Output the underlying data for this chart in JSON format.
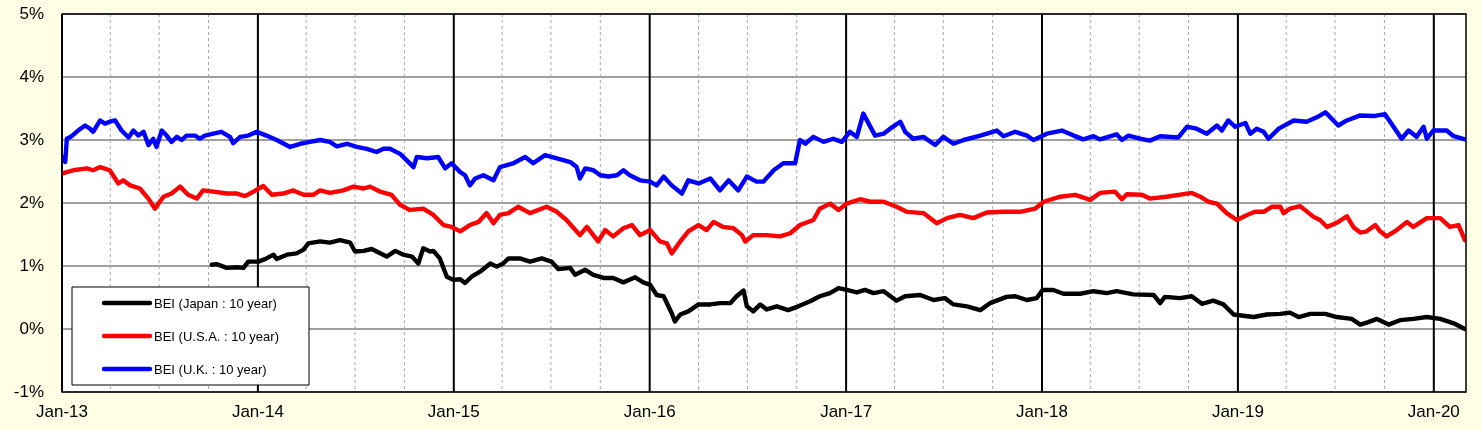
{
  "chart_data": {
    "type": "line",
    "xlim": [
      "2013-01-01",
      "2020-03-01"
    ],
    "xticks": [
      {
        "value": "2013-01-01",
        "label": "Jan-13"
      },
      {
        "value": "2013-04-01",
        "label": null
      },
      {
        "value": "2013-07-01",
        "label": null
      },
      {
        "value": "2013-10-01",
        "label": null
      },
      {
        "value": "2014-01-01",
        "label": "Jan-14"
      },
      {
        "value": "2014-04-01",
        "label": null
      },
      {
        "value": "2014-07-01",
        "label": null
      },
      {
        "value": "2014-10-01",
        "label": null
      },
      {
        "value": "2015-01-01",
        "label": "Jan-15"
      },
      {
        "value": "2015-04-01",
        "label": null
      },
      {
        "value": "2015-07-01",
        "label": null
      },
      {
        "value": "2015-10-01",
        "label": null
      },
      {
        "value": "2016-01-01",
        "label": "Jan-16"
      },
      {
        "value": "2016-04-01",
        "label": null
      },
      {
        "value": "2016-07-01",
        "label": null
      },
      {
        "value": "2016-10-01",
        "label": null
      },
      {
        "value": "2017-01-01",
        "label": "Jan-17"
      },
      {
        "value": "2017-04-01",
        "label": null
      },
      {
        "value": "2017-07-01",
        "label": null
      },
      {
        "value": "2017-10-01",
        "label": null
      },
      {
        "value": "2018-01-01",
        "label": "Jan-18"
      },
      {
        "value": "2018-04-01",
        "label": null
      },
      {
        "value": "2018-07-01",
        "label": null
      },
      {
        "value": "2018-10-01",
        "label": null
      },
      {
        "value": "2019-01-01",
        "label": "Jan-19"
      },
      {
        "value": "2019-04-01",
        "label": null
      },
      {
        "value": "2019-07-01",
        "label": null
      },
      {
        "value": "2019-10-01",
        "label": null
      },
      {
        "value": "2020-01-01",
        "label": "Jan-20"
      }
    ],
    "ylim": [
      -1,
      5
    ],
    "yticks": [
      {
        "value": -1,
        "label": "-1%"
      },
      {
        "value": 0,
        "label": "0%"
      },
      {
        "value": 1,
        "label": "1%"
      },
      {
        "value": 2,
        "label": "2%"
      },
      {
        "value": 3,
        "label": "3%"
      },
      {
        "value": 4,
        "label": "4%"
      },
      {
        "value": 5,
        "label": "5%"
      }
    ],
    "grid": true,
    "legend": "bottom left",
    "series": [
      {
        "name": "BEI (Japan : 10 year)",
        "color": "#000000",
        "x": [
          "2013-10-07",
          "2013-10-16",
          "2013-11-04",
          "2013-11-23",
          "2013-12-05",
          "2013-12-14",
          "2014-01-02",
          "2014-01-17",
          "2014-01-30",
          "2014-02-05",
          "2014-02-24",
          "2014-03-14",
          "2014-03-27",
          "2014-04-05",
          "2014-04-27",
          "2014-05-15",
          "2014-06-03",
          "2014-06-22",
          "2014-07-01",
          "2014-07-17",
          "2014-08-01",
          "2014-08-29",
          "2014-09-14",
          "2014-09-29",
          "2014-10-15",
          "2014-10-27",
          "2014-11-05",
          "2014-11-18",
          "2014-11-24",
          "2014-12-06",
          "2014-12-19",
          "2014-12-31",
          "2015-01-13",
          "2015-01-22",
          "2015-02-03",
          "2015-02-19",
          "2015-03-10",
          "2015-03-22",
          "2015-04-03",
          "2015-04-13",
          "2015-05-04",
          "2015-05-23",
          "2015-06-14",
          "2015-07-02",
          "2015-07-15",
          "2015-08-06",
          "2015-08-15",
          "2015-09-03",
          "2015-09-18",
          "2015-10-07",
          "2015-10-25",
          "2015-11-13",
          "2015-12-05",
          "2015-12-20",
          "2016-01-02",
          "2016-01-14",
          "2016-01-27",
          "2016-02-11",
          "2016-02-17",
          "2016-02-27",
          "2016-03-13",
          "2016-04-01",
          "2016-04-23",
          "2016-05-11",
          "2016-05-30",
          "2016-06-11",
          "2016-06-24",
          "2016-06-30",
          "2016-07-12",
          "2016-07-25",
          "2016-08-06",
          "2016-08-25",
          "2016-09-15",
          "2016-10-04",
          "2016-10-26",
          "2016-11-13",
          "2016-12-02",
          "2016-12-18",
          "2017-01-02",
          "2017-01-21",
          "2017-02-05",
          "2017-02-21",
          "2017-03-12",
          "2017-04-05",
          "2017-04-21",
          "2017-05-19",
          "2017-06-13",
          "2017-07-04",
          "2017-07-20",
          "2017-08-14",
          "2017-09-08",
          "2017-09-26",
          "2017-10-27",
          "2017-11-12",
          "2017-12-04",
          "2017-12-22",
          "2018-01-02",
          "2018-01-22",
          "2018-02-10",
          "2018-03-13",
          "2018-04-07",
          "2018-05-02",
          "2018-05-20",
          "2018-06-20",
          "2018-07-28",
          "2018-08-09",
          "2018-08-18",
          "2018-09-15",
          "2018-10-07",
          "2018-10-26",
          "2018-11-16",
          "2018-12-05",
          "2018-12-24",
          "2019-01-11",
          "2019-01-30",
          "2019-02-24",
          "2019-03-21",
          "2019-04-08",
          "2019-04-24",
          "2019-05-16",
          "2019-06-13",
          "2019-07-04",
          "2019-08-01",
          "2019-08-17",
          "2019-09-01",
          "2019-09-17",
          "2019-10-09",
          "2019-10-30",
          "2019-11-24",
          "2019-12-19",
          "2020-01-13",
          "2020-02-07",
          "2020-02-28"
        ],
        "values": [
          1.02,
          1.03,
          0.97,
          0.98,
          0.97,
          1.07,
          1.07,
          1.12,
          1.18,
          1.11,
          1.18,
          1.2,
          1.26,
          1.36,
          1.39,
          1.37,
          1.41,
          1.37,
          1.23,
          1.24,
          1.27,
          1.15,
          1.24,
          1.18,
          1.15,
          1.04,
          1.28,
          1.23,
          1.24,
          1.12,
          0.83,
          0.78,
          0.79,
          0.73,
          0.83,
          0.91,
          1.04,
          0.99,
          1.04,
          1.12,
          1.12,
          1.07,
          1.12,
          1.07,
          0.95,
          0.97,
          0.86,
          0.94,
          0.86,
          0.81,
          0.81,
          0.74,
          0.82,
          0.74,
          0.7,
          0.54,
          0.52,
          0.25,
          0.12,
          0.23,
          0.28,
          0.39,
          0.39,
          0.41,
          0.41,
          0.52,
          0.61,
          0.36,
          0.28,
          0.39,
          0.31,
          0.36,
          0.3,
          0.36,
          0.44,
          0.52,
          0.57,
          0.65,
          0.62,
          0.58,
          0.62,
          0.57,
          0.6,
          0.45,
          0.52,
          0.54,
          0.46,
          0.49,
          0.39,
          0.36,
          0.3,
          0.41,
          0.51,
          0.52,
          0.46,
          0.49,
          0.62,
          0.62,
          0.56,
          0.56,
          0.6,
          0.57,
          0.6,
          0.55,
          0.54,
          0.41,
          0.51,
          0.49,
          0.52,
          0.4,
          0.45,
          0.39,
          0.23,
          0.21,
          0.19,
          0.23,
          0.24,
          0.26,
          0.19,
          0.24,
          0.24,
          0.19,
          0.16,
          0.07,
          0.11,
          0.16,
          0.07,
          0.14,
          0.16,
          0.19,
          0.16,
          0.09,
          0.0
        ]
      },
      {
        "name": "BEI (U.S.A. : 10 year)",
        "color": "#ff0000",
        "x": [
          "2013-01-02",
          "2013-01-22",
          "2013-02-16",
          "2013-02-28",
          "2013-03-13",
          "2013-03-31",
          "2013-04-16",
          "2013-04-25",
          "2013-05-08",
          "2013-05-26",
          "2013-06-11",
          "2013-06-23",
          "2013-07-09",
          "2013-07-24",
          "2013-08-09",
          "2013-08-24",
          "2013-09-09",
          "2013-09-21",
          "2013-10-10",
          "2013-11-04",
          "2013-11-23",
          "2013-12-08",
          "2013-12-24",
          "2014-01-11",
          "2014-01-27",
          "2014-02-17",
          "2014-03-08",
          "2014-03-27",
          "2014-04-14",
          "2014-04-27",
          "2014-05-15",
          "2014-06-09",
          "2014-06-28",
          "2014-07-17",
          "2014-07-29",
          "2014-08-17",
          "2014-09-07",
          "2014-09-23",
          "2014-10-11",
          "2014-11-05",
          "2014-11-24",
          "2014-12-13",
          "2014-12-28",
          "2015-01-13",
          "2015-01-31",
          "2015-02-16",
          "2015-03-03",
          "2015-03-16",
          "2015-03-28",
          "2015-04-13",
          "2015-05-01",
          "2015-05-23",
          "2015-06-23",
          "2015-07-12",
          "2015-07-30",
          "2015-08-24",
          "2015-09-06",
          "2015-09-27",
          "2015-10-10",
          "2015-10-25",
          "2015-11-13",
          "2015-11-29",
          "2015-12-14",
          "2016-01-02",
          "2016-01-20",
          "2016-02-02",
          "2016-02-11",
          "2016-02-27",
          "2016-03-13",
          "2016-04-01",
          "2016-04-16",
          "2016-04-29",
          "2016-05-17",
          "2016-06-05",
          "2016-06-21",
          "2016-06-27",
          "2016-07-12",
          "2016-08-06",
          "2016-08-31",
          "2016-09-19",
          "2016-10-07",
          "2016-11-01",
          "2016-11-13",
          "2016-12-02",
          "2016-12-18",
          "2017-01-02",
          "2017-01-27",
          "2017-02-15",
          "2017-03-12",
          "2017-04-05",
          "2017-04-24",
          "2017-05-25",
          "2017-06-19",
          "2017-07-08",
          "2017-08-01",
          "2017-08-26",
          "2017-09-20",
          "2017-10-21",
          "2017-11-21",
          "2017-12-19",
          "2018-01-04",
          "2018-02-04",
          "2018-03-04",
          "2018-04-01",
          "2018-04-19",
          "2018-05-17",
          "2018-05-30",
          "2018-06-08",
          "2018-07-06",
          "2018-07-21",
          "2018-08-21",
          "2018-09-22",
          "2018-10-07",
          "2018-10-23",
          "2018-11-07",
          "2018-11-23",
          "2018-12-11",
          "2018-12-30",
          "2019-01-18",
          "2019-02-02",
          "2019-02-18",
          "2019-03-05",
          "2019-03-21",
          "2019-03-27",
          "2019-04-08",
          "2019-04-27",
          "2019-05-22",
          "2019-06-03",
          "2019-06-16",
          "2019-07-07",
          "2019-07-23",
          "2019-08-04",
          "2019-08-17",
          "2019-08-29",
          "2019-09-14",
          "2019-09-23",
          "2019-10-05",
          "2019-10-24",
          "2019-11-12",
          "2019-11-24",
          "2019-12-19",
          "2020-01-13",
          "2020-01-31",
          "2020-02-16",
          "2020-02-28"
        ],
        "values": [
          2.47,
          2.52,
          2.55,
          2.52,
          2.57,
          2.52,
          2.31,
          2.36,
          2.28,
          2.23,
          2.07,
          1.91,
          2.1,
          2.15,
          2.26,
          2.13,
          2.07,
          2.2,
          2.18,
          2.15,
          2.15,
          2.11,
          2.18,
          2.27,
          2.13,
          2.15,
          2.2,
          2.13,
          2.13,
          2.2,
          2.16,
          2.2,
          2.26,
          2.23,
          2.26,
          2.18,
          2.13,
          1.97,
          1.89,
          1.91,
          1.81,
          1.65,
          1.62,
          1.55,
          1.65,
          1.7,
          1.84,
          1.68,
          1.81,
          1.84,
          1.94,
          1.84,
          1.94,
          1.86,
          1.73,
          1.49,
          1.62,
          1.39,
          1.57,
          1.47,
          1.6,
          1.65,
          1.49,
          1.57,
          1.39,
          1.36,
          1.2,
          1.39,
          1.55,
          1.65,
          1.57,
          1.7,
          1.62,
          1.6,
          1.49,
          1.39,
          1.49,
          1.49,
          1.47,
          1.52,
          1.65,
          1.73,
          1.91,
          1.99,
          1.89,
          1.99,
          2.06,
          2.02,
          2.02,
          1.94,
          1.86,
          1.84,
          1.68,
          1.76,
          1.81,
          1.76,
          1.85,
          1.86,
          1.86,
          1.91,
          2.02,
          2.1,
          2.13,
          2.05,
          2.16,
          2.18,
          2.06,
          2.14,
          2.13,
          2.07,
          2.1,
          2.14,
          2.16,
          2.1,
          2.02,
          1.99,
          1.84,
          1.73,
          1.81,
          1.86,
          1.86,
          1.94,
          1.94,
          1.84,
          1.91,
          1.95,
          1.78,
          1.73,
          1.62,
          1.7,
          1.79,
          1.62,
          1.53,
          1.55,
          1.65,
          1.55,
          1.47,
          1.57,
          1.7,
          1.62,
          1.76,
          1.76,
          1.62,
          1.65,
          1.41
        ]
      },
      {
        "name": "BEI (U.K. : 10 year)",
        "color": "#0000ff",
        "x": [
          "2013-01-02",
          "2013-01-07",
          "2013-01-10",
          "2013-01-19",
          "2013-01-31",
          "2013-02-13",
          "2013-02-22",
          "2013-02-28",
          "2013-03-13",
          "2013-03-22",
          "2013-03-31",
          "2013-04-10",
          "2013-04-16",
          "2013-04-22",
          "2013-05-05",
          "2013-05-14",
          "2013-05-23",
          "2013-06-02",
          "2013-06-11",
          "2013-06-20",
          "2013-06-26",
          "2013-07-06",
          "2013-07-15",
          "2013-07-24",
          "2013-08-03",
          "2013-08-12",
          "2013-08-21",
          "2013-09-06",
          "2013-09-15",
          "2013-09-24",
          "2013-10-10",
          "2013-10-25",
          "2013-11-10",
          "2013-11-16",
          "2013-11-29",
          "2013-12-14",
          "2013-12-30",
          "2014-01-17",
          "2014-02-05",
          "2014-03-02",
          "2014-03-21",
          "2014-04-08",
          "2014-04-27",
          "2014-05-15",
          "2014-05-28",
          "2014-06-16",
          "2014-07-04",
          "2014-07-23",
          "2014-08-10",
          "2014-08-23",
          "2014-09-04",
          "2014-09-23",
          "2014-10-05",
          "2014-10-18",
          "2014-10-24",
          "2014-11-12",
          "2014-12-03",
          "2014-12-16",
          "2014-12-28",
          "2015-01-13",
          "2015-01-22",
          "2015-01-31",
          "2015-02-10",
          "2015-02-25",
          "2015-03-16",
          "2015-03-28",
          "2015-04-22",
          "2015-05-14",
          "2015-05-29",
          "2015-06-20",
          "2015-07-12",
          "2015-08-06",
          "2015-08-18",
          "2015-08-24",
          "2015-09-03",
          "2015-09-18",
          "2015-10-01",
          "2015-10-16",
          "2015-11-01",
          "2015-11-13",
          "2015-11-25",
          "2015-12-14",
          "2016-01-02",
          "2016-01-14",
          "2016-01-27",
          "2016-02-11",
          "2016-03-01",
          "2016-03-13",
          "2016-04-01",
          "2016-04-23",
          "2016-05-11",
          "2016-05-27",
          "2016-06-14",
          "2016-06-30",
          "2016-07-18",
          "2016-07-31",
          "2016-08-19",
          "2016-09-06",
          "2016-09-28",
          "2016-10-07",
          "2016-10-17",
          "2016-11-01",
          "2016-11-20",
          "2016-12-08",
          "2016-12-24",
          "2017-01-08",
          "2017-01-21",
          "2017-02-02",
          "2017-02-12",
          "2017-02-24",
          "2017-03-12",
          "2017-03-24",
          "2017-04-12",
          "2017-04-21",
          "2017-05-06",
          "2017-05-25",
          "2017-06-16",
          "2017-07-01",
          "2017-07-20",
          "2017-08-08",
          "2017-09-08",
          "2017-10-09",
          "2017-10-21",
          "2017-11-12",
          "2017-12-04",
          "2017-12-16",
          "2018-01-10",
          "2018-02-07",
          "2018-03-01",
          "2018-03-19",
          "2018-04-07",
          "2018-04-19",
          "2018-05-20",
          "2018-05-30",
          "2018-06-11",
          "2018-07-03",
          "2018-07-21",
          "2018-08-09",
          "2018-09-12",
          "2018-09-28",
          "2018-10-16",
          "2018-11-04",
          "2018-11-23",
          "2018-12-02",
          "2018-12-14",
          "2018-12-27",
          "2019-01-15",
          "2019-01-24",
          "2019-02-05",
          "2019-02-18",
          "2019-02-27",
          "2019-03-18",
          "2019-04-15",
          "2019-05-09",
          "2019-05-28",
          "2019-06-13",
          "2019-07-07",
          "2019-07-23",
          "2019-08-17",
          "2019-09-11",
          "2019-10-02",
          "2019-10-18",
          "2019-11-02",
          "2019-11-15",
          "2019-11-30",
          "2019-12-13",
          "2019-12-19",
          "2019-12-31",
          "2020-01-25",
          "2020-02-07",
          "2020-02-28"
        ],
        "values": [
          2.73,
          2.65,
          3.02,
          3.06,
          3.15,
          3.23,
          3.18,
          3.13,
          3.31,
          3.26,
          3.29,
          3.31,
          3.23,
          3.15,
          3.04,
          3.15,
          3.07,
          3.13,
          2.92,
          3.02,
          2.89,
          3.15,
          3.07,
          2.97,
          3.05,
          3.0,
          3.07,
          3.07,
          3.02,
          3.07,
          3.1,
          3.13,
          3.05,
          2.95,
          3.05,
          3.07,
          3.13,
          3.07,
          3.0,
          2.89,
          2.94,
          2.97,
          3.0,
          2.97,
          2.9,
          2.94,
          2.89,
          2.86,
          2.81,
          2.86,
          2.86,
          2.78,
          2.68,
          2.57,
          2.73,
          2.71,
          2.73,
          2.55,
          2.63,
          2.49,
          2.44,
          2.28,
          2.39,
          2.44,
          2.36,
          2.57,
          2.63,
          2.73,
          2.63,
          2.76,
          2.71,
          2.65,
          2.57,
          2.39,
          2.55,
          2.52,
          2.44,
          2.42,
          2.44,
          2.52,
          2.44,
          2.36,
          2.34,
          2.28,
          2.42,
          2.28,
          2.15,
          2.36,
          2.31,
          2.39,
          2.2,
          2.36,
          2.2,
          2.42,
          2.34,
          2.34,
          2.52,
          2.63,
          2.63,
          3.0,
          2.94,
          3.05,
          2.97,
          3.02,
          2.97,
          3.13,
          3.05,
          3.42,
          3.26,
          3.07,
          3.1,
          3.18,
          3.29,
          3.13,
          3.02,
          3.05,
          2.92,
          3.05,
          2.94,
          3.0,
          3.07,
          3.15,
          3.06,
          3.13,
          3.07,
          3.0,
          3.1,
          3.15,
          3.07,
          3.01,
          3.06,
          3.01,
          3.09,
          3.0,
          3.07,
          3.02,
          2.99,
          3.06,
          3.04,
          3.21,
          3.18,
          3.1,
          3.23,
          3.15,
          3.31,
          3.21,
          3.27,
          3.1,
          3.18,
          3.13,
          3.02,
          3.18,
          3.31,
          3.29,
          3.36,
          3.44,
          3.23,
          3.31,
          3.39,
          3.38,
          3.41,
          3.21,
          3.02,
          3.15,
          3.05,
          3.21,
          3.02,
          3.15,
          3.15,
          3.06,
          3.01
        ]
      }
    ]
  }
}
